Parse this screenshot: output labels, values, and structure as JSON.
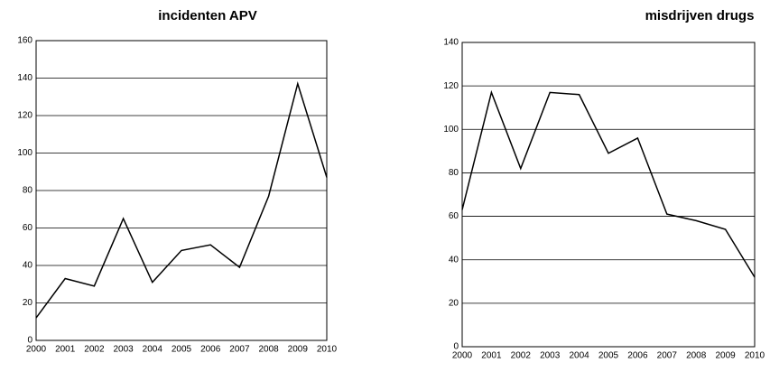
{
  "chart_data": [
    {
      "type": "line",
      "title": "incidenten APV",
      "categories": [
        "2000",
        "2001",
        "2002",
        "2003",
        "2004",
        "2005",
        "2006",
        "2007",
        "2008",
        "2009",
        "2010"
      ],
      "values": [
        12,
        33,
        29,
        65,
        31,
        48,
        51,
        39,
        77,
        137,
        87
      ],
      "color": "#000000",
      "ylim": [
        0,
        160
      ],
      "yticks": [
        0,
        20,
        40,
        60,
        80,
        100,
        120,
        140,
        160
      ],
      "grid": true
    },
    {
      "type": "line",
      "title": "misdrijven drugs",
      "categories": [
        "2000",
        "2001",
        "2002",
        "2003",
        "2004",
        "2005",
        "2006",
        "2007",
        "2008",
        "2009",
        "2010"
      ],
      "values": [
        63,
        117,
        82,
        117,
        116,
        89,
        96,
        61,
        58,
        54,
        32
      ],
      "color": "#000000",
      "ylim": [
        0,
        140
      ],
      "yticks": [
        0,
        20,
        40,
        60,
        80,
        100,
        120,
        140
      ],
      "grid": true
    }
  ]
}
